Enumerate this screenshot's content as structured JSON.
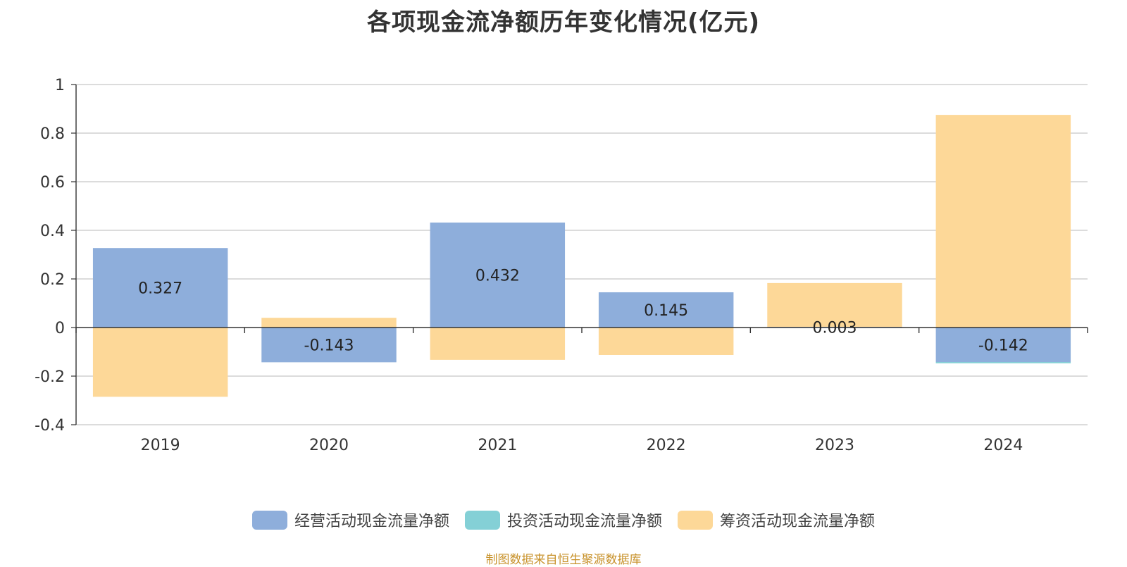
{
  "title": "各项现金流净额历年变化情况(亿元)",
  "source_note": "制图数据来自恒生聚源数据库",
  "colors": {
    "operating": "#8eaedb",
    "investing": "#84d0d6",
    "financing": "#fdd898",
    "grid": "#c8c8c8",
    "axis": "#333333"
  },
  "chart_data": {
    "type": "bar",
    "title": "各项现金流净额历年变化情况(亿元)",
    "categories": [
      "2019",
      "2020",
      "2021",
      "2022",
      "2023",
      "2024"
    ],
    "ylim": [
      -0.4,
      1
    ],
    "yticks": [
      -0.4,
      -0.2,
      0,
      0.2,
      0.4,
      0.6,
      0.8,
      1
    ],
    "ytick_labels": [
      "-0.4",
      "-0.2",
      "0",
      "0.2",
      "0.4",
      "0.6",
      "0.8",
      "1"
    ],
    "grid": true,
    "legend_position": "bottom",
    "series": [
      {
        "name": "经营活动现金流量净额",
        "key": "operating",
        "values": [
          0.327,
          -0.143,
          0.432,
          0.145,
          0.003,
          -0.142
        ],
        "labels": [
          "0.327",
          "-0.143",
          "0.432",
          "0.145",
          "0.003",
          "-0.142"
        ]
      },
      {
        "name": "投资活动现金流量净额",
        "key": "investing",
        "values": [
          0,
          0,
          0,
          0,
          0,
          -0.005
        ]
      },
      {
        "name": "筹资活动现金流量净额",
        "key": "financing",
        "values": [
          -0.285,
          0.04,
          -0.133,
          -0.113,
          0.18,
          0.875
        ]
      }
    ]
  }
}
